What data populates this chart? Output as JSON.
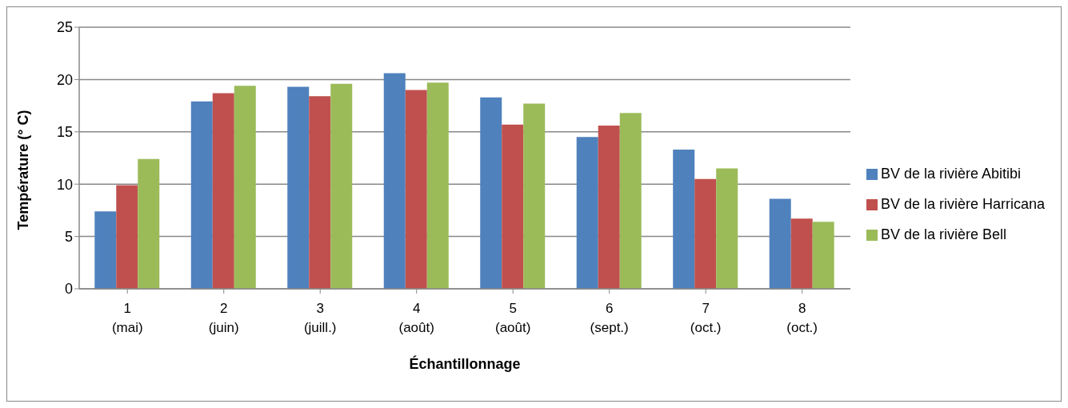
{
  "chart_data": {
    "type": "bar",
    "xlabel": "Échantillonnage",
    "ylabel": "Température (° C)",
    "categories": [
      "1\n(mai)",
      "2\n(juin)",
      "3\n(juill.)",
      "4\n(août)",
      "5\n(août)",
      "6\n(sept.)",
      "7\n(oct.)",
      "8\n(oct.)"
    ],
    "series": [
      {
        "name": "BV de la rivière Abitibi",
        "color": "#4f81bd",
        "values": [
          7.4,
          17.9,
          19.3,
          20.6,
          18.3,
          14.5,
          13.3,
          8.6
        ]
      },
      {
        "name": "BV de la rivière Harricana",
        "color": "#c0504d",
        "values": [
          9.9,
          18.7,
          18.4,
          19.0,
          15.7,
          15.6,
          10.5,
          6.7
        ]
      },
      {
        "name": "BV de la rivière Bell",
        "color": "#9bbb59",
        "values": [
          12.4,
          19.4,
          19.6,
          19.7,
          17.7,
          16.8,
          11.5,
          6.4
        ]
      }
    ],
    "ylim": [
      0,
      25
    ],
    "yticks": [
      0,
      5,
      10,
      15,
      20,
      25
    ],
    "grid": "y",
    "legend": "right"
  }
}
